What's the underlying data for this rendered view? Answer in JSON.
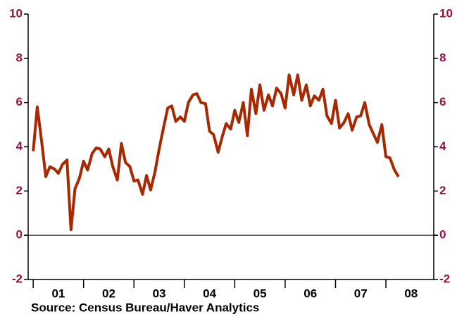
{
  "chart_data": {
    "type": "line",
    "source": "Source:   Census Bureau/Haver Analytics",
    "color": "#a82800",
    "tick_label_color": "#a0103c",
    "x": [
      2001,
      2001.08,
      2001.17,
      2001.25,
      2001.33,
      2001.42,
      2001.5,
      2001.58,
      2001.67,
      2001.75,
      2001.83,
      2001.92,
      2002,
      2002.08,
      2002.17,
      2002.25,
      2002.33,
      2002.42,
      2002.5,
      2002.58,
      2002.67,
      2002.75,
      2002.83,
      2002.92,
      2003,
      2003.08,
      2003.17,
      2003.25,
      2003.33,
      2003.42,
      2003.5,
      2003.58,
      2003.67,
      2003.75,
      2003.83,
      2003.92,
      2004,
      2004.08,
      2004.17,
      2004.25,
      2004.33,
      2004.42,
      2004.5,
      2004.58,
      2004.67,
      2004.75,
      2004.83,
      2004.92,
      2005,
      2005.08,
      2005.17,
      2005.25,
      2005.33,
      2005.42,
      2005.5,
      2005.58,
      2005.67,
      2005.75,
      2005.83,
      2005.92,
      2006,
      2006.08,
      2006.17,
      2006.25,
      2006.33,
      2006.42,
      2006.5,
      2006.58,
      2006.67,
      2006.75,
      2006.83,
      2006.92,
      2007,
      2007.08,
      2007.17,
      2007.25,
      2007.33,
      2007.42,
      2007.5,
      2007.58,
      2007.67,
      2007.75,
      2007.83,
      2007.92,
      2008,
      2008.08,
      2008.17,
      2008.25
    ],
    "values": [
      3.8,
      5.8,
      4.2,
      2.65,
      3.1,
      3.0,
      2.8,
      3.2,
      3.4,
      0.25,
      2.1,
      2.6,
      3.35,
      2.95,
      3.7,
      3.95,
      3.9,
      3.55,
      3.9,
      3.1,
      2.5,
      4.15,
      3.3,
      3.1,
      2.45,
      2.5,
      1.85,
      2.7,
      2.05,
      2.9,
      3.9,
      4.8,
      5.75,
      5.85,
      5.15,
      5.35,
      5.15,
      6.0,
      6.35,
      6.4,
      6.0,
      5.95,
      4.7,
      4.55,
      3.75,
      4.45,
      5.05,
      4.8,
      5.65,
      5.1,
      6.0,
      4.5,
      6.6,
      5.5,
      6.8,
      5.65,
      6.35,
      5.85,
      6.65,
      6.4,
      5.75,
      7.25,
      6.35,
      7.25,
      6.1,
      6.8,
      5.85,
      6.3,
      6.1,
      6.6,
      5.4,
      5.05,
      6.1,
      4.85,
      5.1,
      5.5,
      4.75,
      5.35,
      5.4,
      6.0,
      5.0,
      4.6,
      4.2,
      5.0,
      3.55,
      3.5,
      2.95,
      2.65
    ],
    "xlim": [
      2000.9,
      2008.95
    ],
    "xticks": [
      {
        "value": 2001,
        "label": "01"
      },
      {
        "value": 2002,
        "label": "02"
      },
      {
        "value": 2003,
        "label": "03"
      },
      {
        "value": 2004,
        "label": "04"
      },
      {
        "value": 2005,
        "label": "05"
      },
      {
        "value": 2006,
        "label": "06"
      },
      {
        "value": 2007,
        "label": "07"
      },
      {
        "value": 2008,
        "label": "08"
      }
    ],
    "ylim": [
      -2,
      10
    ],
    "yticks": [
      -2,
      0,
      2,
      4,
      6,
      8,
      10
    ],
    "zero_line": true
  }
}
